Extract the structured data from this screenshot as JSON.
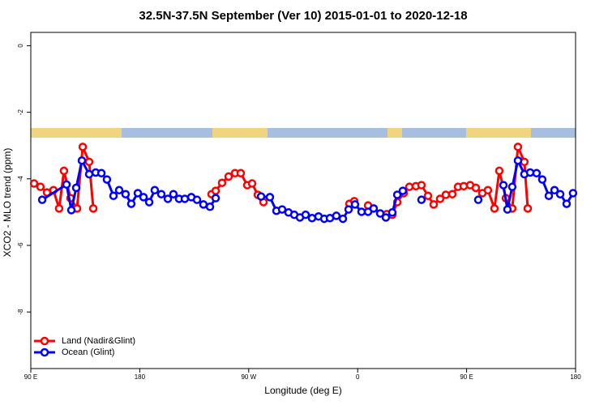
{
  "chart_data": {
    "type": "line",
    "title": "32.5N-37.5N September (Ver 10)   2015-01-01 to 2020-12-18",
    "xlabel": "Longitude (deg E)",
    "ylabel": "XCO2 - MLO trend (ppm)",
    "xlim": [
      90,
      540
    ],
    "xticks": [
      {
        "value": 90,
        "label": "90 E"
      },
      180,
      {
        "value": 270,
        "label": "90 W"
      },
      {
        "value": 360,
        "label": "0"
      },
      {
        "value": 450,
        "label": "90 E"
      },
      {
        "value": 540,
        "label": "180"
      }
    ],
    "ylim": [
      -9.7,
      0.4
    ],
    "yticks": [
      0,
      -2,
      -4,
      -6,
      -8
    ],
    "legend": "bottom-left",
    "series": [
      {
        "name": "Land (Nadir&Glint)",
        "color": "#ff0000",
        "x": [
          92.7,
          98.0,
          103.4,
          108.7,
          113.4,
          117.4,
          122.8,
          128.2,
          132.9,
          138.2,
          141.6,
          null,
          239.3,
          242.7,
          248.0,
          253.4,
          258.7,
          263.4,
          268.8,
          272.8,
          277.5,
          282.2,
          null,
          353.2,
          357.2,
          null,
          368.6,
          null,
          384.0,
          388.6,
          392.7,
          398.0,
          402.7,
          408.1,
          412.7,
          418.1,
          422.8,
          428.1,
          432.8,
          438.2,
          442.9,
          447.6,
          452.9,
          457.6,
          463.0,
          467.6,
          473.0,
          477.0,
          482.4,
          487.7,
          492.4,
          497.7,
          500.5
        ],
        "values": [
          -4.14,
          -4.24,
          -4.41,
          -4.34,
          -4.89,
          -3.76,
          -4.58,
          -4.89,
          -3.04,
          -3.49,
          -4.89,
          null,
          -4.46,
          -4.36,
          -4.12,
          -3.93,
          -3.83,
          -3.83,
          -4.19,
          -4.14,
          -4.48,
          -4.7,
          null,
          -4.75,
          -4.67,
          null,
          -4.8,
          null,
          -5.06,
          -5.08,
          -4.7,
          -4.43,
          -4.24,
          -4.22,
          -4.19,
          -4.51,
          -4.77,
          -4.6,
          -4.48,
          -4.46,
          -4.24,
          -4.22,
          -4.19,
          -4.27,
          -4.43,
          -4.34,
          -4.89,
          -3.76,
          -4.58,
          -4.89,
          -3.04,
          -3.49,
          -4.89
        ]
      },
      {
        "name": "Ocean (Glint)",
        "color": "#0000ff",
        "x": [
          99.4,
          119.5,
          123.5,
          127.5,
          132.2,
          138.2,
          143.6,
          148.3,
          152.9,
          158.3,
          163.0,
          168.3,
          173.0,
          178.4,
          183.1,
          187.8,
          192.4,
          197.8,
          203.2,
          207.8,
          212.5,
          217.2,
          222.6,
          227.3,
          232.6,
          238.0,
          242.7,
          null,
          280.2,
          287.5,
          292.9,
          297.6,
          302.9,
          307.6,
          312.3,
          317.0,
          322.3,
          327.7,
          332.4,
          337.1,
          342.4,
          347.8,
          352.5,
          357.8,
          363.2,
          368.6,
          373.2,
          378.6,
          383.3,
          388.6,
          392.7,
          397.3,
          null,
          412.7,
          null,
          459.6,
          null,
          480.4,
          483.7,
          487.7,
          492.4,
          497.7,
          502.5,
          507.8,
          512.5,
          517.9,
          522.6,
          527.3,
          532.6,
          537.9
        ],
        "values": [
          -4.63,
          -4.17,
          -4.94,
          -4.27,
          -3.45,
          -3.86,
          -3.81,
          -3.83,
          -4.02,
          -4.51,
          -4.34,
          -4.46,
          -4.75,
          -4.43,
          -4.55,
          -4.7,
          -4.34,
          -4.46,
          -4.6,
          -4.46,
          -4.6,
          -4.6,
          -4.55,
          -4.63,
          -4.77,
          -4.84,
          -4.58,
          null,
          -4.53,
          -4.55,
          -4.96,
          -4.92,
          -5.01,
          -5.08,
          -5.16,
          -5.08,
          -5.18,
          -5.13,
          -5.2,
          -5.18,
          -5.11,
          -5.2,
          -4.92,
          -4.77,
          -4.99,
          -4.99,
          -4.89,
          -5.04,
          -5.16,
          -5.01,
          -4.48,
          -4.36,
          null,
          -4.63,
          null,
          -4.63,
          null,
          -4.19,
          -4.92,
          -4.24,
          -3.45,
          -3.86,
          -3.81,
          -3.83,
          -4.02,
          -4.51,
          -4.34,
          -4.46,
          -4.75,
          -4.43
        ]
      }
    ]
  }
}
